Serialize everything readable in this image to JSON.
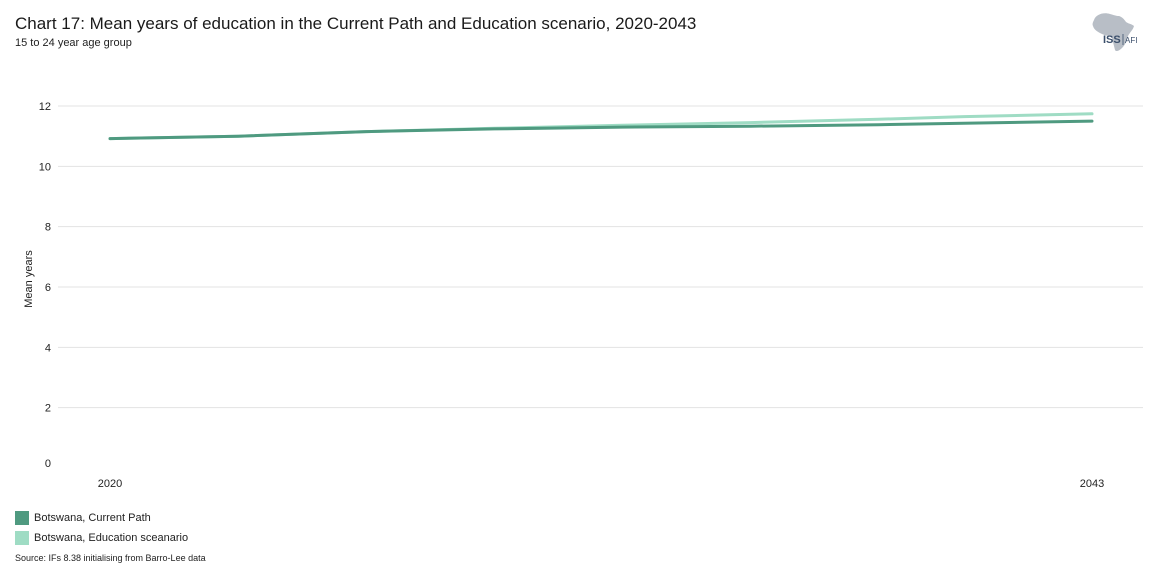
{
  "header": {
    "title": "Chart 17: Mean years of education in the Current Path and Education scenario, 2020-2043",
    "subtitle": "15 to 24 year age group"
  },
  "logo": {
    "text_main": "ISS",
    "text_sub": "AFI",
    "icon": "africa-map-icon",
    "map_color": "#b8bec6",
    "text_color": "#3b4f6b"
  },
  "chart_data": {
    "type": "line",
    "title": "Chart 17: Mean years of education in the Current Path and Education scenario, 2020-2043",
    "subtitle": "15 to 24 year age group",
    "xlabel": "",
    "ylabel": "Mean years",
    "x": [
      2020,
      2023,
      2026,
      2029,
      2032,
      2035,
      2038,
      2040,
      2043
    ],
    "x_tick_labels": [
      "2020",
      "2043"
    ],
    "y_ticks": [
      0,
      2,
      4,
      6,
      8,
      10,
      12
    ],
    "ylim": [
      0,
      12
    ],
    "grid": true,
    "legend_position": "bottom-left",
    "series": [
      {
        "name": "Botswana, Current Path",
        "color": "#4f9a80",
        "values": [
          10.92,
          11.0,
          11.15,
          11.24,
          11.3,
          11.33,
          11.38,
          11.43,
          11.5
        ]
      },
      {
        "name": "Botswana, Education sceanario",
        "color": "#9fdcc4",
        "values": [
          10.92,
          11.0,
          11.15,
          11.26,
          11.36,
          11.45,
          11.56,
          11.65,
          11.74
        ]
      }
    ]
  },
  "source": "Source: IFs 8.38 initialising from Barro-Lee data"
}
